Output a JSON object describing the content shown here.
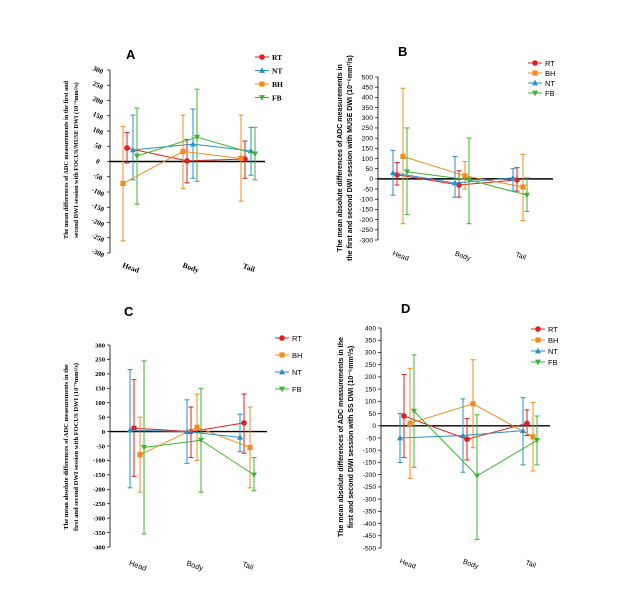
{
  "chart_data": [
    {
      "type": "line-errorbar",
      "panel_label": "A",
      "categories": [
        "Head",
        "Body",
        "Tail"
      ],
      "ylim": [
        -300,
        300
      ],
      "yticks": [
        -300,
        -250,
        -200,
        -150,
        -100,
        -50,
        0,
        50,
        100,
        150,
        200,
        250,
        300
      ],
      "ylabel_lines": [
        "The mean differences of ADC measurements in the first and",
        "second DWI session with FOCUS/MUSE DWI (10⁻⁶mm²/s)"
      ],
      "series": [
        {
          "name": "RT",
          "color": "#e02020",
          "marker": "circle",
          "values": [
            44,
            2,
            8
          ],
          "err": [
            [
              -5,
              95
            ],
            [
              -70,
              72
            ],
            [
              -55,
              67
            ]
          ]
        },
        {
          "name": "NT",
          "color": "#2a8fc8",
          "marker": "triangle",
          "values": [
            38,
            57,
            35
          ],
          "err": [
            [
              -60,
              152
            ],
            [
              -55,
              172
            ],
            [
              -45,
              112
            ]
          ]
        },
        {
          "name": "BH",
          "color": "#f28c1c",
          "marker": "square",
          "values": [
            -72,
            33,
            10
          ],
          "err": [
            [
              -260,
              115
            ],
            [
              -88,
              152
            ],
            [
              -130,
              152
            ]
          ]
        },
        {
          "name": "FB",
          "color": "#3cb531",
          "marker": "triangle-down",
          "values": [
            18,
            80,
            25
          ],
          "err": [
            [
              -140,
              175
            ],
            [
              -65,
              237
            ],
            [
              -60,
              112
            ]
          ]
        }
      ]
    },
    {
      "type": "line-errorbar",
      "panel_label": "B",
      "categories": [
        "Head",
        "Body",
        "Tail"
      ],
      "ylim": [
        -300,
        500
      ],
      "yticks": [
        -300,
        -250,
        -200,
        -150,
        -100,
        -50,
        0,
        50,
        100,
        150,
        200,
        250,
        300,
        350,
        400,
        450,
        500
      ],
      "ylabel_lines": [
        "The mean absolute differences of ADC measurements in",
        "the first and second DWI session with MUSE DWI (10⁻⁶mm²/s)"
      ],
      "series": [
        {
          "name": "RT",
          "color": "#e02020",
          "marker": "circle",
          "values": [
            20,
            -30,
            -5
          ],
          "err": [
            [
              -30,
              80
            ],
            [
              -90,
              40
            ],
            [
              -60,
              55
            ]
          ]
        },
        {
          "name": "BH",
          "color": "#f28c1c",
          "marker": "square",
          "values": [
            110,
            15,
            -40
          ],
          "err": [
            [
              -220,
              445
            ],
            [
              -50,
              85
            ],
            [
              -205,
              120
            ]
          ]
        },
        {
          "name": "NT",
          "color": "#2a8fc8",
          "marker": "triangle",
          "values": [
            30,
            -20,
            5
          ],
          "err": [
            [
              -80,
              140
            ],
            [
              -90,
              110
            ],
            [
              -60,
              50
            ]
          ]
        },
        {
          "name": "FB",
          "color": "#3cb531",
          "marker": "triangle-down",
          "values": [
            35,
            -5,
            -80
          ],
          "err": [
            [
              -175,
              250
            ],
            [
              -220,
              200
            ],
            [
              -160,
              5
            ]
          ]
        }
      ]
    },
    {
      "type": "line-errorbar",
      "panel_label": "C",
      "categories": [
        "Head",
        "Body",
        "Tail"
      ],
      "ylim": [
        -400,
        300
      ],
      "yticks": [
        -400,
        -350,
        -300,
        -250,
        -200,
        -150,
        -100,
        -50,
        0,
        50,
        100,
        150,
        200,
        250,
        300
      ],
      "ylabel_lines": [
        "The mean absolute differences of ADC measurements in the",
        "first and second DWI session with FOCUS DWI (10⁻⁶mm²/s)"
      ],
      "series": [
        {
          "name": "RT",
          "color": "#e02020",
          "marker": "circle",
          "values": [
            12,
            0,
            30
          ],
          "err": [
            [
              -155,
              180
            ],
            [
              -90,
              85
            ],
            [
              -75,
              130
            ]
          ]
        },
        {
          "name": "BH",
          "color": "#f28c1c",
          "marker": "square",
          "values": [
            -80,
            15,
            -55
          ],
          "err": [
            [
              -210,
              50
            ],
            [
              -100,
              130
            ],
            [
              -195,
              85
            ]
          ]
        },
        {
          "name": "NT",
          "color": "#2a8fc8",
          "marker": "triangle",
          "values": [
            5,
            0,
            -20
          ],
          "err": [
            [
              -195,
              215
            ],
            [
              -110,
              110
            ],
            [
              -70,
              60
            ]
          ]
        },
        {
          "name": "FB",
          "color": "#3cb531",
          "marker": "triangle-down",
          "values": [
            -55,
            -30,
            -150
          ],
          "err": [
            [
              -355,
              245
            ],
            [
              -210,
              150
            ],
            [
              -205,
              -90
            ]
          ]
        }
      ]
    },
    {
      "type": "line-errorbar",
      "panel_label": "D",
      "categories": [
        "Head",
        "Body",
        "Tail"
      ],
      "ylim": [
        -500,
        400
      ],
      "yticks": [
        -500,
        -450,
        -400,
        -350,
        -300,
        -250,
        -200,
        -150,
        -100,
        -50,
        0,
        50,
        100,
        150,
        200,
        250,
        300,
        350,
        400
      ],
      "ylabel_lines": [
        "The mean absolute differences of ADC measurements in the",
        "first and second DWI session with SS DWI (10⁻⁶mm²/s)"
      ],
      "series": [
        {
          "name": "RT",
          "color": "#e02020",
          "marker": "circle",
          "values": [
            40,
            -55,
            10
          ],
          "err": [
            [
              -130,
              210
            ],
            [
              -140,
              30
            ],
            [
              -40,
              65
            ]
          ]
        },
        {
          "name": "BH",
          "color": "#f28c1c",
          "marker": "square",
          "values": [
            10,
            90,
            -45
          ],
          "err": [
            [
              -215,
              235
            ],
            [
              -90,
              270
            ],
            [
              -185,
              95
            ]
          ]
        },
        {
          "name": "NT",
          "color": "#2a8fc8",
          "marker": "triangle",
          "values": [
            -50,
            -40,
            -20
          ],
          "err": [
            [
              -150,
              50
            ],
            [
              -190,
              110
            ],
            [
              -160,
              115
            ]
          ]
        },
        {
          "name": "FB",
          "color": "#3cb531",
          "marker": "triangle-down",
          "values": [
            60,
            -205,
            -60
          ],
          "err": [
            [
              -170,
              290
            ],
            [
              -465,
              45
            ],
            [
              -160,
              40
            ]
          ]
        }
      ]
    }
  ]
}
